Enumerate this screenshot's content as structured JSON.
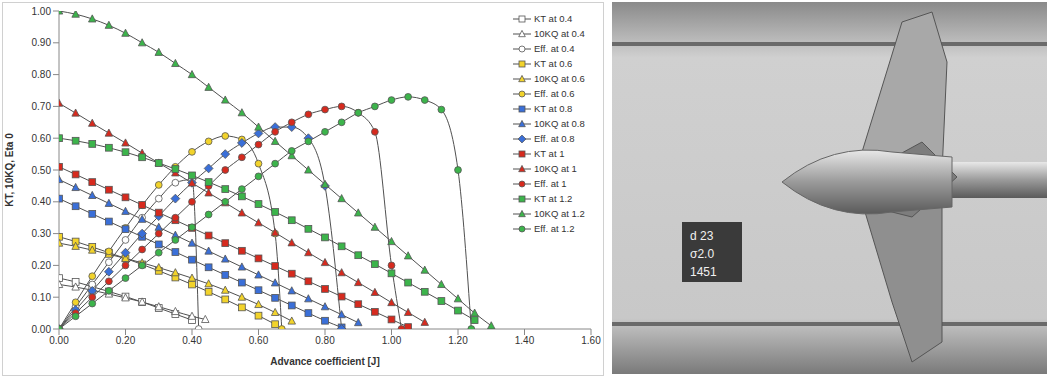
{
  "chart_data": {
    "type": "line",
    "x_label": "Advance coefficient [J]",
    "y_label": "KT, 10KQ, Eta 0",
    "xlim": [
      0,
      1.6
    ],
    "ylim": [
      0,
      1.0
    ],
    "xticks": [
      {
        "value": 0,
        "label": "0.00"
      },
      {
        "value": 0.2,
        "label": "0.20"
      },
      {
        "value": 0.4,
        "label": "0.40"
      },
      {
        "value": 0.6,
        "label": "0.60"
      },
      {
        "value": 0.8,
        "label": "0.80"
      },
      {
        "value": 1.0,
        "label": "1.00"
      },
      {
        "value": 1.2,
        "label": "1.20"
      },
      {
        "value": 1.4,
        "label": "1.40"
      },
      {
        "value": 1.6,
        "label": "1.60"
      }
    ],
    "yticks": [
      {
        "value": 0,
        "label": "0.00"
      },
      {
        "value": 0.1,
        "label": "0.10"
      },
      {
        "value": 0.2,
        "label": "0.20"
      },
      {
        "value": 0.3,
        "label": "0.30"
      },
      {
        "value": 0.4,
        "label": "0.40"
      },
      {
        "value": 0.5,
        "label": "0.50"
      },
      {
        "value": 0.6,
        "label": "0.60"
      },
      {
        "value": 0.7,
        "label": "0.70"
      },
      {
        "value": 0.8,
        "label": "0.80"
      },
      {
        "value": 0.9,
        "label": "0.90"
      },
      {
        "value": 1.0,
        "label": "1.00"
      }
    ],
    "grid": false,
    "legend": "right",
    "series": [
      {
        "name": "KT at 0.4",
        "color": "#ffffff",
        "marker": "square",
        "x": [
          0,
          0.05,
          0.1,
          0.15,
          0.2,
          0.25,
          0.3,
          0.35,
          0.4
        ],
        "values": [
          0.16,
          0.148,
          0.133,
          0.118,
          0.102,
          0.085,
          0.066,
          0.047,
          0.028
        ]
      },
      {
        "name": "10KQ at 0.4",
        "color": "#ffffff",
        "marker": "triangle",
        "x": [
          0,
          0.05,
          0.1,
          0.15,
          0.2,
          0.25,
          0.3,
          0.35,
          0.4,
          0.44
        ],
        "values": [
          0.14,
          0.132,
          0.122,
          0.11,
          0.098,
          0.085,
          0.07,
          0.055,
          0.04,
          0.03
        ]
      },
      {
        "name": "Eff. at 0.4",
        "color": "#ffffff",
        "marker": "circle",
        "x": [
          0,
          0.05,
          0.1,
          0.15,
          0.2,
          0.25,
          0.3,
          0.35,
          0.4,
          0.42
        ],
        "values": [
          0,
          0.07,
          0.14,
          0.21,
          0.28,
          0.35,
          0.41,
          0.46,
          0.47,
          0
        ]
      },
      {
        "name": "KT at 0.6",
        "color": "#f2d32b",
        "marker": "square",
        "x": [
          0,
          0.05,
          0.1,
          0.15,
          0.2,
          0.25,
          0.3,
          0.35,
          0.4,
          0.45,
          0.5,
          0.55,
          0.6,
          0.65
        ],
        "values": [
          0.29,
          0.275,
          0.258,
          0.24,
          0.222,
          0.203,
          0.183,
          0.162,
          0.14,
          0.117,
          0.093,
          0.068,
          0.042,
          0.015
        ]
      },
      {
        "name": "10KQ at 0.6",
        "color": "#f2d32b",
        "marker": "triangle",
        "x": [
          0,
          0.05,
          0.1,
          0.15,
          0.2,
          0.25,
          0.3,
          0.35,
          0.4,
          0.45,
          0.5,
          0.55,
          0.6,
          0.65,
          0.7
        ],
        "values": [
          0.27,
          0.26,
          0.248,
          0.235,
          0.222,
          0.208,
          0.193,
          0.177,
          0.16,
          0.142,
          0.122,
          0.1,
          0.077,
          0.052,
          0.025
        ]
      },
      {
        "name": "Eff. at 0.6",
        "color": "#f2d32b",
        "marker": "circle",
        "x": [
          0,
          0.05,
          0.1,
          0.15,
          0.2,
          0.25,
          0.3,
          0.35,
          0.4,
          0.45,
          0.5,
          0.55,
          0.6,
          0.65,
          0.67
        ],
        "values": [
          0,
          0.084,
          0.166,
          0.244,
          0.318,
          0.389,
          0.453,
          0.51,
          0.557,
          0.59,
          0.607,
          0.596,
          0.52,
          0.3,
          0
        ]
      },
      {
        "name": "KT at 0.8",
        "color": "#3a6fd8",
        "marker": "square",
        "x": [
          0,
          0.05,
          0.1,
          0.15,
          0.2,
          0.25,
          0.3,
          0.35,
          0.4,
          0.45,
          0.5,
          0.55,
          0.6,
          0.65,
          0.7,
          0.75,
          0.8,
          0.85
        ],
        "values": [
          0.41,
          0.386,
          0.362,
          0.338,
          0.314,
          0.29,
          0.266,
          0.242,
          0.218,
          0.194,
          0.17,
          0.146,
          0.122,
          0.098,
          0.074,
          0.05,
          0.026,
          0.005
        ]
      },
      {
        "name": "10KQ at 0.8",
        "color": "#3a6fd8",
        "marker": "triangle",
        "x": [
          0,
          0.05,
          0.1,
          0.15,
          0.2,
          0.25,
          0.3,
          0.35,
          0.4,
          0.45,
          0.5,
          0.55,
          0.6,
          0.65,
          0.7,
          0.75,
          0.8,
          0.85,
          0.9
        ],
        "values": [
          0.47,
          0.445,
          0.42,
          0.395,
          0.37,
          0.345,
          0.32,
          0.295,
          0.27,
          0.245,
          0.22,
          0.195,
          0.17,
          0.145,
          0.12,
          0.095,
          0.07,
          0.045,
          0.02
        ]
      },
      {
        "name": "Eff. at 0.8",
        "color": "#3a6fd8",
        "marker": "diamond",
        "x": [
          0,
          0.05,
          0.1,
          0.15,
          0.2,
          0.25,
          0.3,
          0.35,
          0.4,
          0.45,
          0.5,
          0.55,
          0.6,
          0.65,
          0.7,
          0.75,
          0.8,
          0.85
        ],
        "values": [
          0,
          0.06,
          0.12,
          0.18,
          0.24,
          0.3,
          0.355,
          0.41,
          0.46,
          0.505,
          0.55,
          0.585,
          0.615,
          0.635,
          0.635,
          0.6,
          0.45,
          0
        ]
      },
      {
        "name": "KT at 1",
        "color": "#d62a1e",
        "marker": "square",
        "x": [
          0,
          0.05,
          0.1,
          0.15,
          0.2,
          0.25,
          0.3,
          0.35,
          0.4,
          0.45,
          0.5,
          0.55,
          0.6,
          0.65,
          0.7,
          0.75,
          0.8,
          0.85,
          0.9,
          0.95,
          1,
          1.05
        ],
        "values": [
          0.51,
          0.486,
          0.462,
          0.438,
          0.414,
          0.39,
          0.366,
          0.342,
          0.318,
          0.294,
          0.27,
          0.246,
          0.222,
          0.198,
          0.174,
          0.15,
          0.126,
          0.102,
          0.078,
          0.054,
          0.03,
          0.006
        ]
      },
      {
        "name": "10KQ at 1",
        "color": "#d62a1e",
        "marker": "triangle",
        "x": [
          0,
          0.05,
          0.1,
          0.15,
          0.2,
          0.25,
          0.3,
          0.35,
          0.4,
          0.45,
          0.5,
          0.55,
          0.6,
          0.65,
          0.7,
          0.75,
          0.8,
          0.85,
          0.9,
          0.95,
          1,
          1.05,
          1.1
        ],
        "values": [
          0.71,
          0.679,
          0.647,
          0.616,
          0.585,
          0.553,
          0.522,
          0.491,
          0.459,
          0.428,
          0.397,
          0.365,
          0.334,
          0.303,
          0.271,
          0.24,
          0.209,
          0.177,
          0.146,
          0.115,
          0.083,
          0.052,
          0.021
        ]
      },
      {
        "name": "Eff. at 1",
        "color": "#d62a1e",
        "marker": "circle",
        "x": [
          0,
          0.05,
          0.1,
          0.15,
          0.2,
          0.25,
          0.3,
          0.35,
          0.4,
          0.45,
          0.5,
          0.55,
          0.6,
          0.65,
          0.7,
          0.75,
          0.8,
          0.85,
          0.9,
          0.95,
          1,
          1.03
        ],
        "values": [
          0,
          0.05,
          0.1,
          0.15,
          0.2,
          0.25,
          0.3,
          0.35,
          0.4,
          0.45,
          0.5,
          0.54,
          0.58,
          0.62,
          0.65,
          0.675,
          0.69,
          0.7,
          0.68,
          0.62,
          0.2,
          0
        ]
      },
      {
        "name": "KT at 1.2",
        "color": "#3cb44b",
        "marker": "square",
        "x": [
          0,
          0.05,
          0.1,
          0.15,
          0.2,
          0.25,
          0.3,
          0.35,
          0.4,
          0.45,
          0.5,
          0.55,
          0.6,
          0.65,
          0.7,
          0.75,
          0.8,
          0.85,
          0.9,
          0.95,
          1,
          1.05,
          1.1,
          1.15,
          1.2,
          1.25
        ],
        "values": [
          0.6,
          0.592,
          0.582,
          0.57,
          0.556,
          0.54,
          0.522,
          0.503,
          0.483,
          0.462,
          0.44,
          0.417,
          0.393,
          0.368,
          0.342,
          0.315,
          0.288,
          0.26,
          0.232,
          0.204,
          0.175,
          0.146,
          0.117,
          0.088,
          0.058,
          0.028
        ]
      },
      {
        "name": "10KQ at 1.2",
        "color": "#3cb44b",
        "marker": "triangle",
        "x": [
          0,
          0.05,
          0.1,
          0.15,
          0.2,
          0.25,
          0.3,
          0.35,
          0.4,
          0.45,
          0.5,
          0.55,
          0.6,
          0.65,
          0.7,
          0.75,
          0.8,
          0.85,
          0.9,
          0.95,
          1,
          1.05,
          1.1,
          1.15,
          1.2,
          1.25,
          1.3
        ],
        "values": [
          1.0,
          0.99,
          0.975,
          0.955,
          0.93,
          0.9,
          0.87,
          0.835,
          0.8,
          0.76,
          0.72,
          0.68,
          0.635,
          0.59,
          0.545,
          0.5,
          0.455,
          0.41,
          0.365,
          0.32,
          0.275,
          0.23,
          0.185,
          0.14,
          0.095,
          0.05,
          0.01
        ]
      },
      {
        "name": "Eff. at 1.2",
        "color": "#3cb44b",
        "marker": "circle",
        "x": [
          0,
          0.05,
          0.1,
          0.15,
          0.2,
          0.25,
          0.3,
          0.35,
          0.4,
          0.45,
          0.5,
          0.55,
          0.6,
          0.65,
          0.7,
          0.75,
          0.8,
          0.85,
          0.9,
          0.95,
          1,
          1.05,
          1.1,
          1.15,
          1.2,
          1.24
        ],
        "values": [
          0,
          0.04,
          0.08,
          0.12,
          0.16,
          0.2,
          0.24,
          0.28,
          0.32,
          0.36,
          0.4,
          0.44,
          0.48,
          0.52,
          0.56,
          0.59,
          0.62,
          0.65,
          0.68,
          0.7,
          0.72,
          0.73,
          0.72,
          0.69,
          0.5,
          0
        ]
      }
    ]
  },
  "photo": {
    "plate_text": [
      "d 23",
      "σ2.0",
      "1451"
    ]
  }
}
